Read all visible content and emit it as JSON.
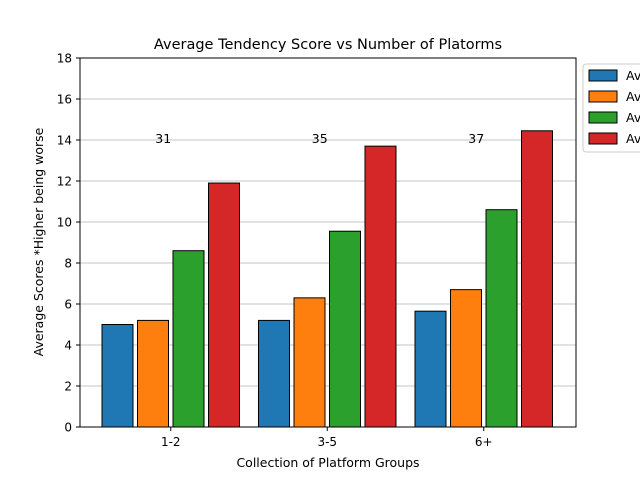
{
  "chart_data": {
    "type": "bar",
    "title": "Average Tendency Score vs Number of Platorms",
    "xlabel": "Collection of Platform Groups",
    "ylabel": "Average Scores *Higher being worse",
    "categories": [
      "1-2",
      "3-5",
      "6+"
    ],
    "ylim": [
      0,
      18
    ],
    "yticks": [
      0,
      2,
      4,
      6,
      8,
      10,
      12,
      14,
      16,
      18
    ],
    "grid": "horizontal",
    "legend_position": "outside-top-right",
    "legend_entries": [
      "Av",
      "Av",
      "Av",
      "Av"
    ],
    "series": [
      {
        "name": "Av",
        "color": "#1f77b4",
        "values": [
          5.0,
          5.2,
          5.65
        ]
      },
      {
        "name": "Av",
        "color": "#ff7f0e",
        "values": [
          5.2,
          6.3,
          6.7
        ]
      },
      {
        "name": "Av",
        "color": "#2ca02c",
        "values": [
          8.6,
          9.55,
          10.6
        ]
      },
      {
        "name": "Av",
        "color": "#d62728",
        "values": [
          11.9,
          13.7,
          14.45
        ]
      }
    ],
    "annotations": [
      {
        "category": "1-2",
        "text": "31",
        "y": 14.1
      },
      {
        "category": "3-5",
        "text": "35",
        "y": 14.1
      },
      {
        "category": "6+",
        "text": "37",
        "y": 14.1
      }
    ]
  }
}
